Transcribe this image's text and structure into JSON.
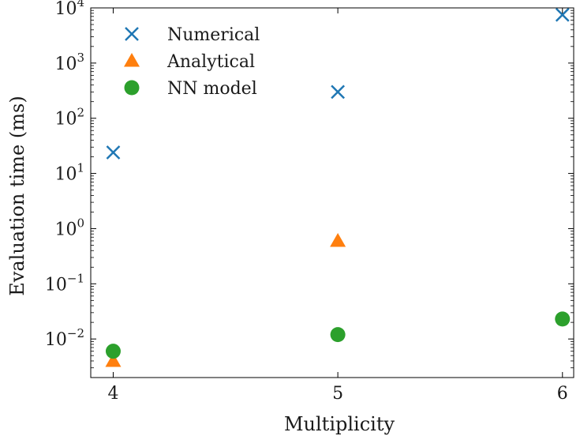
{
  "chart_data": {
    "type": "scatter",
    "xlabel": "Multiplicity",
    "ylabel": "Evaluation time (ms)",
    "yscale": "log",
    "xlim": [
      3.9,
      6.05
    ],
    "ylim": [
      0.002,
      10000
    ],
    "x_ticks": [
      4,
      5,
      6
    ],
    "y_ticks": [
      {
        "value": 0.01,
        "base": "10",
        "exp": "−2"
      },
      {
        "value": 0.1,
        "base": "10",
        "exp": "−1"
      },
      {
        "value": 1,
        "base": "10",
        "exp": "0"
      },
      {
        "value": 10,
        "base": "10",
        "exp": "1"
      },
      {
        "value": 100,
        "base": "10",
        "exp": "2"
      },
      {
        "value": 1000,
        "base": "10",
        "exp": "3"
      },
      {
        "value": 10000,
        "base": "10",
        "exp": "4"
      }
    ],
    "grid": false,
    "legend_position": "top-left",
    "series": [
      {
        "name": "Numerical",
        "marker": "x",
        "color": "#1f77b4",
        "points": [
          {
            "x": 4,
            "y": 24
          },
          {
            "x": 5,
            "y": 300
          },
          {
            "x": 6,
            "y": 7500
          }
        ]
      },
      {
        "name": "Analytical",
        "marker": "triangle",
        "color": "#ff7f0e",
        "points": [
          {
            "x": 4,
            "y": 0.004
          },
          {
            "x": 5,
            "y": 0.6
          }
        ]
      },
      {
        "name": "NN model",
        "marker": "circle",
        "color": "#2ca02c",
        "points": [
          {
            "x": 4,
            "y": 0.006
          },
          {
            "x": 5,
            "y": 0.012
          },
          {
            "x": 6,
            "y": 0.023
          }
        ]
      }
    ]
  }
}
